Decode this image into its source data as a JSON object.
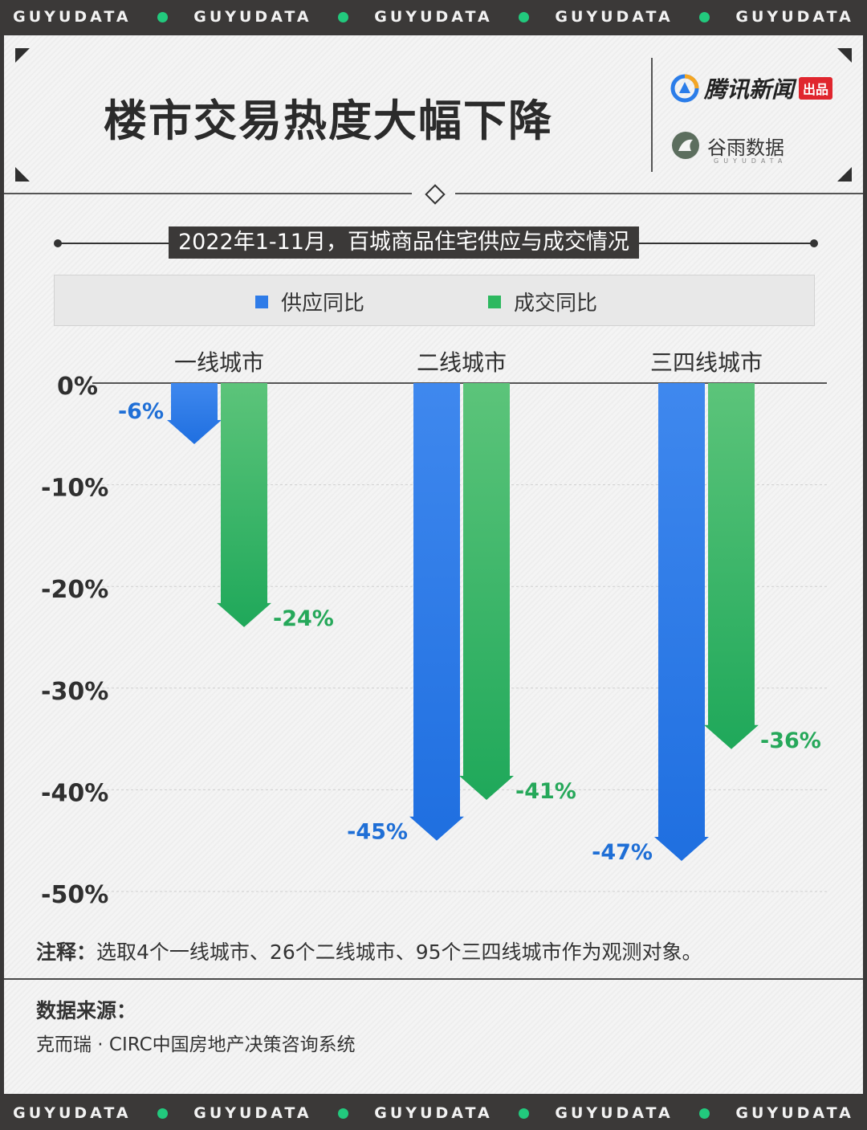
{
  "strip": {
    "word": "GUYUDATA",
    "accent": "#22c97d"
  },
  "header": {
    "title": "楼市交易热度大幅下降",
    "brand_primary": "腾讯新闻",
    "brand_primary_tag": "出品",
    "brand_secondary": "谷雨数据",
    "brand_secondary_sub": "GUYUDATA"
  },
  "colors": {
    "supply": "#2f7ce8",
    "deal": "#2db85f",
    "supply_label": "#1f6fd6",
    "deal_label": "#26a85a"
  },
  "chart_data": {
    "type": "bar",
    "title": "2022年1-11月，百城商品住宅供应与成交情况",
    "categories": [
      "一线城市",
      "二线城市",
      "三四线城市"
    ],
    "series": [
      {
        "name": "供应同比",
        "values": [
          -6,
          -45,
          -47
        ],
        "labels": [
          "-6%",
          "-45%",
          "-47%"
        ]
      },
      {
        "name": "成交同比",
        "values": [
          -24,
          -41,
          -36
        ],
        "labels": [
          "-24%",
          "-41%",
          "-36%"
        ]
      }
    ],
    "yticks": [
      0,
      -10,
      -20,
      -30,
      -40,
      -50
    ],
    "ytick_labels": [
      "0%",
      "-10%",
      "-20%",
      "-30%",
      "-40%",
      "-50%"
    ],
    "ylim": [
      -50,
      0
    ],
    "legend": "top",
    "grid": true
  },
  "footer": {
    "note_label": "注释：",
    "note_text": "选取4个一线城市、26个二线城市、95个三四线城市作为观测对象。",
    "source_label": "数据来源：",
    "source_text": "克而瑞 · CIRC中国房地产决策咨询系统"
  }
}
